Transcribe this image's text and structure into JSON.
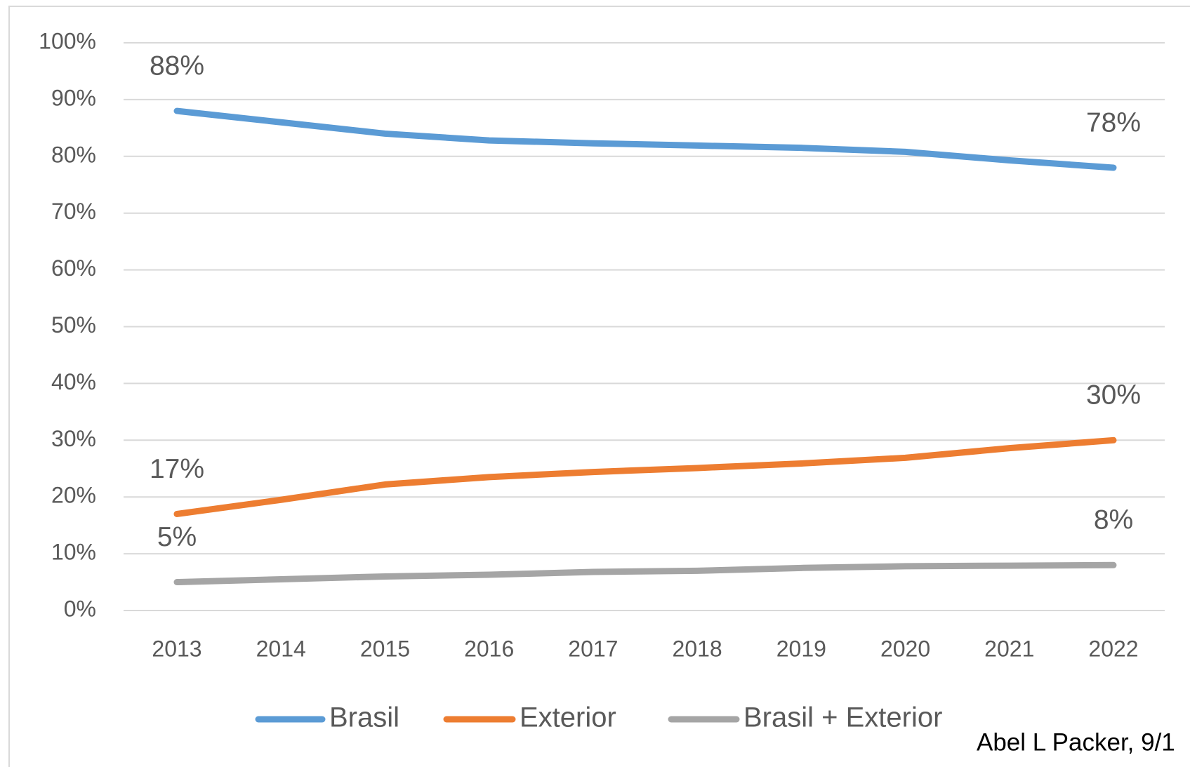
{
  "chart_data": {
    "type": "line",
    "categories": [
      "2013",
      "2014",
      "2015",
      "2016",
      "2017",
      "2018",
      "2019",
      "2020",
      "2021",
      "2022"
    ],
    "series": [
      {
        "name": "Brasil",
        "color": "#5b9bd5",
        "values": [
          88,
          86,
          84,
          82.8,
          82.3,
          81.9,
          81.5,
          80.8,
          79.3,
          78
        ],
        "value_labels": [
          "88%",
          null,
          null,
          null,
          null,
          null,
          null,
          null,
          null,
          "78%"
        ]
      },
      {
        "name": "Exterior",
        "color": "#ed7d31",
        "values": [
          17,
          19.5,
          22.2,
          23.5,
          24.4,
          25.1,
          25.9,
          26.9,
          28.6,
          30
        ],
        "value_labels": [
          "17%",
          null,
          null,
          null,
          null,
          null,
          null,
          null,
          null,
          "30%"
        ]
      },
      {
        "name": "Brasil + Exterior",
        "color": "#a5a5a5",
        "values": [
          5,
          5.5,
          6,
          6.3,
          6.8,
          7,
          7.5,
          7.8,
          7.9,
          8
        ],
        "value_labels": [
          "5%",
          null,
          null,
          null,
          null,
          null,
          null,
          null,
          null,
          "8%"
        ]
      }
    ],
    "ylim": [
      0,
      100
    ],
    "yticks": [
      {
        "value": 0,
        "label": "0%"
      },
      {
        "value": 10,
        "label": "10%"
      },
      {
        "value": 20,
        "label": "20%"
      },
      {
        "value": 30,
        "label": "30%"
      },
      {
        "value": 40,
        "label": "40%"
      },
      {
        "value": 50,
        "label": "50%"
      },
      {
        "value": 60,
        "label": "60%"
      },
      {
        "value": 70,
        "label": "70%"
      },
      {
        "value": 80,
        "label": "80%"
      },
      {
        "value": 90,
        "label": "90%"
      },
      {
        "value": 100,
        "label": "100%"
      }
    ],
    "grid": true,
    "legend": "bottom",
    "annotation": "Abel L Packer, 9/1"
  }
}
